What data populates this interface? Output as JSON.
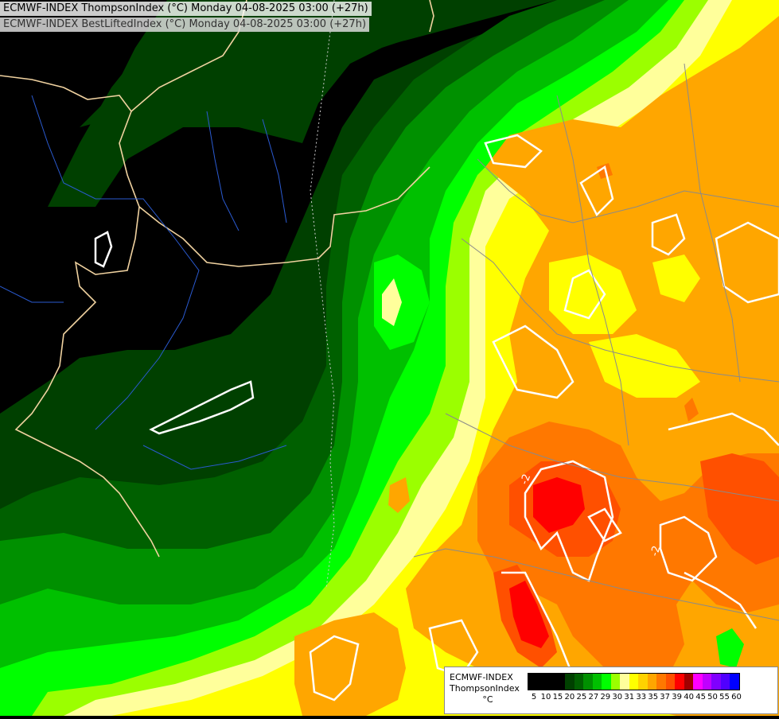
{
  "titles": {
    "line1": "ECMWF-INDEX ThompsonIndex (°C) Monday 04-08-2025 03:00 (+27h)",
    "line2": "ECMWF-INDEX BestLiftedIndex (°C) Monday 04-08-2025 03:00 (+27h)"
  },
  "map": {
    "contour_labels": [
      "-2",
      "-2",
      "-2"
    ]
  },
  "legend": {
    "model": "ECMWF-INDEX",
    "param": "ThompsonIndex",
    "unit": "°C",
    "ticks": [
      "5",
      "10",
      "15",
      "20",
      "25",
      "27",
      "29",
      "30",
      "31",
      "33",
      "35",
      "37",
      "39",
      "40",
      "45",
      "50",
      "55",
      "60"
    ],
    "colors": [
      "#000000",
      "#000000",
      "#000000",
      "#000000",
      "#004000",
      "#006000",
      "#009000",
      "#00c000",
      "#00ff00",
      "#9bff00",
      "#ffff9b",
      "#ffff00",
      "#ffd200",
      "#ffa600",
      "#ff7800",
      "#ff5000",
      "#ff0000",
      "#a00000",
      "#ff00ff",
      "#c000ff",
      "#8000ff",
      "#5000ff",
      "#0000ff"
    ]
  }
}
